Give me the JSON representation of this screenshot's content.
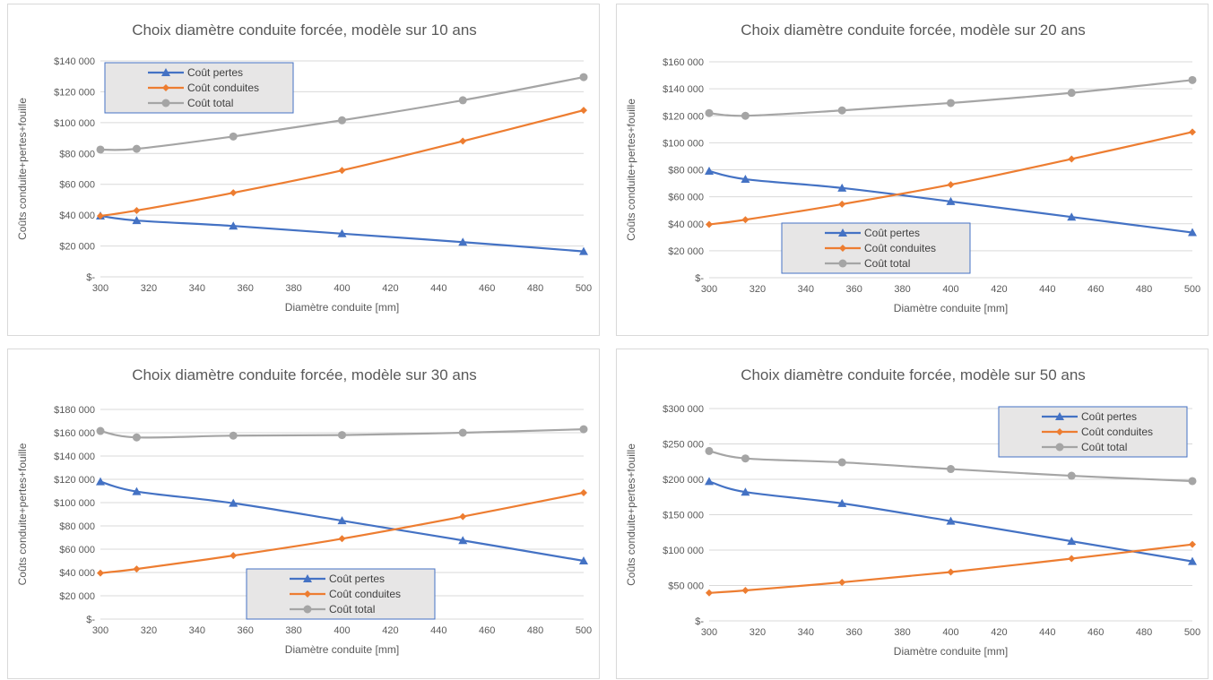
{
  "colors": {
    "pertes": "#4472C4",
    "conduites": "#ED7D31",
    "total": "#A5A5A5",
    "grid": "#d9d9d9",
    "text": "#595959"
  },
  "chart_data": [
    {
      "type": "line",
      "title": "Choix diamètre conduite forcée, modèle sur 10 ans",
      "xlabel": "Diamètre conduite [mm]",
      "ylabel": "Coûts conduite+pertes+fouille",
      "x": [
        300,
        315,
        355,
        400,
        450,
        500
      ],
      "xticks": [
        300,
        320,
        340,
        360,
        380,
        400,
        420,
        440,
        460,
        480,
        500
      ],
      "xticklabels": [
        "300",
        "320",
        "340",
        "360",
        "380",
        "400",
        "420",
        "440",
        "460",
        "480",
        "500"
      ],
      "xlim": [
        300,
        500
      ],
      "ylim": [
        0,
        140000
      ],
      "yticks": [
        0,
        20000,
        40000,
        60000,
        80000,
        100000,
        120000,
        140000
      ],
      "yticklabels": [
        "$-",
        "$20 000",
        "$40 000",
        "$60 000",
        "$80 000",
        "$100 000",
        "$120 000",
        "$140 000"
      ],
      "grid": true,
      "legend_position": "top-left",
      "series": [
        {
          "name": "Coût pertes",
          "marker": "triangle",
          "values": [
            39500,
            36500,
            33000,
            28000,
            22500,
            16500
          ]
        },
        {
          "name": "Coût conduites",
          "marker": "diamond",
          "values": [
            39500,
            43000,
            54500,
            69000,
            88000,
            108000
          ]
        },
        {
          "name": "Coût total",
          "marker": "circle",
          "values": [
            82500,
            83000,
            91000,
            101500,
            114500,
            129500
          ]
        }
      ]
    },
    {
      "type": "line",
      "title": "Choix diamètre conduite forcée, modèle sur 20 ans",
      "xlabel": "Diamètre conduite [mm]",
      "ylabel": "Coûts conduite+pertes+fouille",
      "x": [
        300,
        315,
        355,
        400,
        450,
        500
      ],
      "xticks": [
        300,
        320,
        340,
        360,
        380,
        400,
        420,
        440,
        460,
        480,
        500
      ],
      "xticklabels": [
        "300",
        "320",
        "340",
        "360",
        "380",
        "400",
        "420",
        "440",
        "460",
        "480",
        "500"
      ],
      "xlim": [
        300,
        500
      ],
      "ylim": [
        0,
        160000
      ],
      "yticks": [
        0,
        20000,
        40000,
        60000,
        80000,
        100000,
        120000,
        140000,
        160000
      ],
      "yticklabels": [
        "$-",
        "$20 000",
        "$40 000",
        "$60 000",
        "$80 000",
        "$100 000",
        "$120 000",
        "$140 000",
        "$160 000"
      ],
      "grid": true,
      "legend_position": "bottom-left",
      "series": [
        {
          "name": "Coût pertes",
          "marker": "triangle",
          "values": [
            79000,
            73000,
            66500,
            56500,
            45000,
            33500
          ]
        },
        {
          "name": "Coût conduites",
          "marker": "diamond",
          "values": [
            39500,
            43000,
            54500,
            69000,
            88000,
            108000
          ]
        },
        {
          "name": "Coût total",
          "marker": "circle",
          "values": [
            122000,
            120000,
            124000,
            129500,
            137000,
            146500
          ]
        }
      ]
    },
    {
      "type": "line",
      "title": "Choix diamètre conduite forcée, modèle sur 30 ans",
      "xlabel": "Diamètre conduite [mm]",
      "ylabel": "Coûts conduite+pertes+fouille",
      "x": [
        300,
        315,
        355,
        400,
        450,
        500
      ],
      "xticks": [
        300,
        320,
        340,
        360,
        380,
        400,
        420,
        440,
        460,
        480,
        500
      ],
      "xticklabels": [
        "300",
        "320",
        "340",
        "360",
        "380",
        "400",
        "420",
        "440",
        "460",
        "480",
        "500"
      ],
      "xlim": [
        300,
        500
      ],
      "ylim": [
        0,
        180000
      ],
      "yticks": [
        0,
        20000,
        40000,
        60000,
        80000,
        100000,
        120000,
        140000,
        160000,
        180000
      ],
      "yticklabels": [
        "$-",
        "$20 000",
        "$40 000",
        "$60 000",
        "$80 000",
        "$100 000",
        "$120 000",
        "$140 000",
        "$160 000",
        "$180 000"
      ],
      "grid": true,
      "legend_position": "bottom-center",
      "series": [
        {
          "name": "Coût pertes",
          "marker": "triangle",
          "values": [
            118000,
            109500,
            99500,
            84500,
            67500,
            50000
          ]
        },
        {
          "name": "Coût conduites",
          "marker": "diamond",
          "values": [
            39500,
            43000,
            54500,
            69000,
            88000,
            108500
          ]
        },
        {
          "name": "Coût total",
          "marker": "circle",
          "values": [
            161500,
            156000,
            157500,
            158000,
            160000,
            163000
          ]
        }
      ]
    },
    {
      "type": "line",
      "title": "Choix diamètre conduite forcée, modèle sur 50 ans",
      "xlabel": "Diamètre conduite [mm]",
      "ylabel": "Coûts conduite+pertes+fouille",
      "x": [
        300,
        315,
        355,
        400,
        450,
        500
      ],
      "xticks": [
        300,
        320,
        340,
        360,
        380,
        400,
        420,
        440,
        460,
        480,
        500
      ],
      "xticklabels": [
        "300",
        "320",
        "340",
        "360",
        "380",
        "400",
        "420",
        "440",
        "460",
        "480",
        "500"
      ],
      "xlim": [
        300,
        500
      ],
      "ylim": [
        0,
        300000
      ],
      "yticks": [
        0,
        50000,
        100000,
        150000,
        200000,
        250000,
        300000
      ],
      "yticklabels": [
        "$-",
        "$50 000",
        "$100 000",
        "$150 000",
        "$200 000",
        "$250 000",
        "$300 000"
      ],
      "grid": true,
      "legend_position": "top-right",
      "series": [
        {
          "name": "Coût pertes",
          "marker": "triangle",
          "values": [
            197000,
            182000,
            166000,
            141000,
            112500,
            84000
          ]
        },
        {
          "name": "Coût conduites",
          "marker": "diamond",
          "values": [
            39500,
            43000,
            54500,
            69000,
            88000,
            108000
          ]
        },
        {
          "name": "Coût total",
          "marker": "circle",
          "values": [
            240000,
            229500,
            224000,
            214500,
            205000,
            197500
          ]
        }
      ]
    }
  ]
}
